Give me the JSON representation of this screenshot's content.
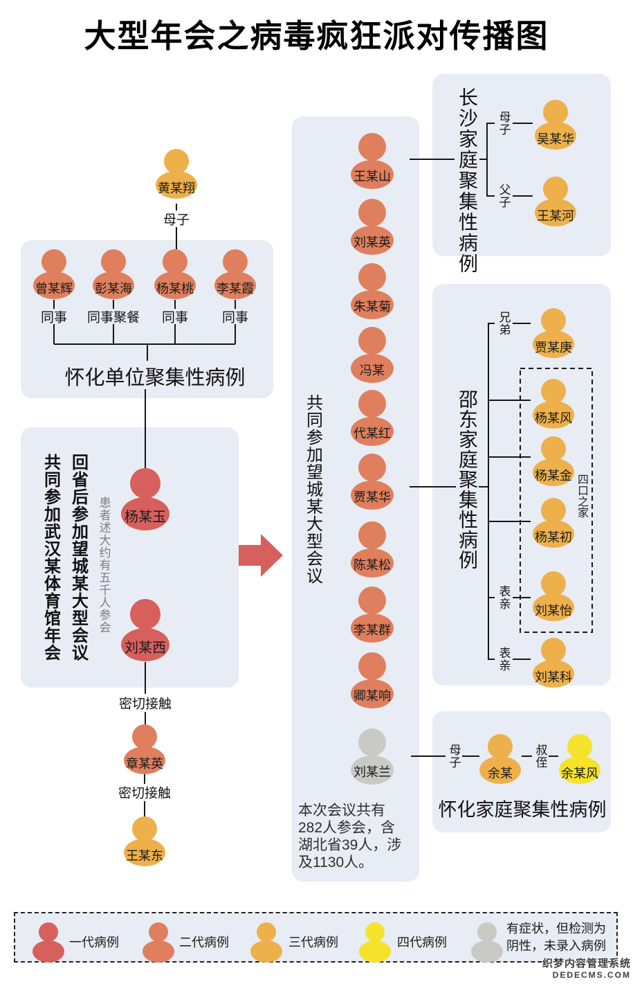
{
  "title": "大型年会之病毒疯狂派对传播图",
  "colors": {
    "gen1": "#d7605d",
    "gen2": "#df7f5e",
    "gen3": "#eeb04b",
    "gen4": "#f5e32b",
    "negative": "#c9c9c6",
    "panel": "#e8ecf4",
    "arrow": "#d7605d",
    "line": "#161616"
  },
  "groups": {
    "index_case": {
      "name": "黄某翔",
      "gen": "gen3",
      "edge": "母子"
    },
    "huaihua_unit": {
      "title": "怀化单位聚集性病例",
      "members": [
        {
          "name": "曾某辉",
          "gen": "gen2",
          "edge": "同事"
        },
        {
          "name": "彭某海",
          "gen": "gen2",
          "edge": "同事聚餐"
        },
        {
          "name": "杨某桃",
          "gen": "gen2",
          "edge": "同事"
        },
        {
          "name": "李某霞",
          "gen": "gen2",
          "edge": "同事"
        }
      ]
    },
    "wuhan_meeting": {
      "title_left": "共同参加武汉某体育馆年会",
      "title_right": "回省后参加望城某大型会议",
      "note": "患者述大约有五千人参会",
      "members": [
        {
          "name": "杨某玉",
          "gen": "gen1"
        },
        {
          "name": "刘某西",
          "gen": "gen1"
        }
      ]
    },
    "contact_chain": {
      "edge": "密切接触",
      "members": [
        {
          "name": "章某英",
          "gen": "gen2"
        },
        {
          "name": "王某东",
          "gen": "gen3"
        }
      ]
    },
    "wangcheng_meeting": {
      "title": "共同参加望城某大型会议",
      "note": "本次会议共有282人参会，含湖北省39人，涉及1130人。",
      "members": [
        {
          "name": "王某山",
          "gen": "gen2"
        },
        {
          "name": "刘某英",
          "gen": "gen2"
        },
        {
          "name": "朱某菊",
          "gen": "gen2"
        },
        {
          "name": "冯某",
          "gen": "gen2"
        },
        {
          "name": "代某红",
          "gen": "gen2"
        },
        {
          "name": "贾某华",
          "gen": "gen2"
        },
        {
          "name": "陈某松",
          "gen": "gen2"
        },
        {
          "name": "李某群",
          "gen": "gen2"
        },
        {
          "name": "卿某响",
          "gen": "gen2"
        },
        {
          "name": "刘某兰",
          "gen": "negative"
        }
      ]
    },
    "changsha_family": {
      "title": "长沙家庭聚集性病例",
      "members": [
        {
          "name": "吴某华",
          "gen": "gen3",
          "edge": "母子"
        },
        {
          "name": "王某河",
          "gen": "gen3",
          "edge": "父子"
        }
      ]
    },
    "shaodong_family": {
      "title": "邵东家庭聚集性病例",
      "family_box_label": "四口之家",
      "members": [
        {
          "name": "贾某庚",
          "gen": "gen3",
          "edge": "兄弟"
        },
        {
          "name": "杨某风",
          "gen": "gen3",
          "edge": ""
        },
        {
          "name": "杨某金",
          "gen": "gen3",
          "edge": ""
        },
        {
          "name": "杨某初",
          "gen": "gen3",
          "edge": ""
        },
        {
          "name": "刘某怡",
          "gen": "gen3",
          "edge": "表亲"
        },
        {
          "name": "刘某科",
          "gen": "gen3",
          "edge": "表亲"
        }
      ]
    },
    "huaihua_family": {
      "title": "怀化家庭聚集性病例",
      "members": [
        {
          "name": "余某",
          "gen": "gen3",
          "edge": "母子"
        },
        {
          "name": "余某风",
          "gen": "gen4",
          "edge": "叔侄"
        }
      ]
    }
  },
  "legend": {
    "items": [
      {
        "gen": "gen1",
        "label": "一代病例"
      },
      {
        "gen": "gen2",
        "label": "二代病例"
      },
      {
        "gen": "gen3",
        "label": "三代病例"
      },
      {
        "gen": "gen4",
        "label": "四代病例"
      },
      {
        "gen": "negative",
        "label": "有症状，但检测为阴性，未录入病例"
      }
    ]
  },
  "watermark": {
    "line1": "织梦内容管理系统",
    "line2": "DEDECMS.COM"
  }
}
